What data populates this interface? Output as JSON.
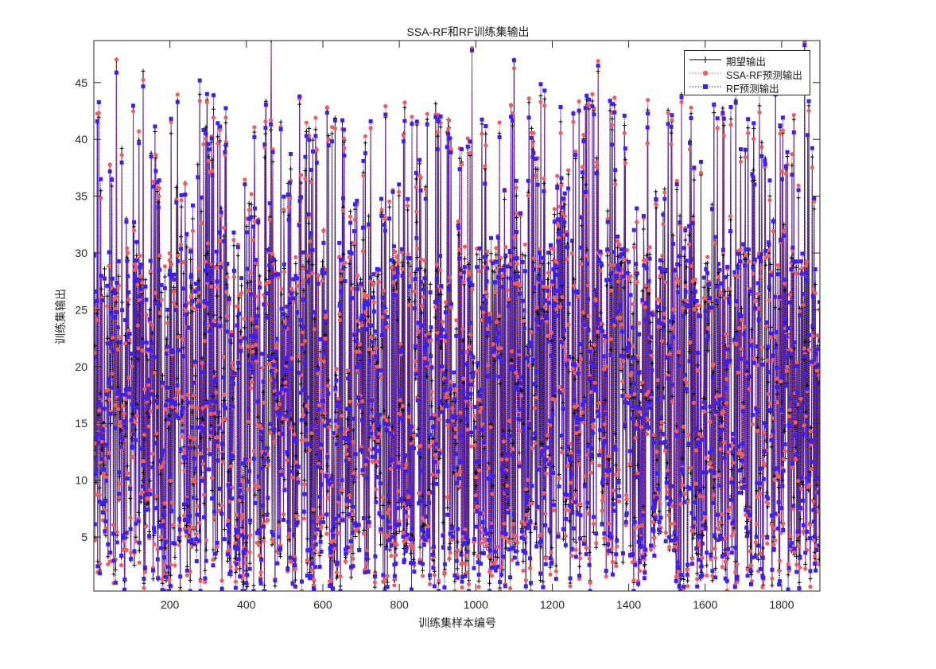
{
  "figure": {
    "title": "SSA-RF和RF训练集输出",
    "xlabel": "训练集样本编号",
    "ylabel": "训练集输出"
  },
  "legend": {
    "items": [
      {
        "label": "期望输出",
        "color": "#000000",
        "line": "solid",
        "marker": "plus"
      },
      {
        "label": "SSA-RF预测输出",
        "color": "#f05d5d",
        "line": "dotted",
        "marker": "circle"
      },
      {
        "label": "RF预测输出",
        "color": "#3d1ff0",
        "line": "dotted",
        "marker": "square"
      }
    ]
  },
  "chart_data": {
    "type": "line",
    "title": "SSA-RF和RF训练集输出",
    "xlabel": "训练集样本编号",
    "ylabel": "训练集输出",
    "xlim": [
      1,
      1900
    ],
    "ylim": [
      0.24,
      48.7
    ],
    "xticks": [
      200,
      400,
      600,
      800,
      1000,
      1200,
      1400,
      1600,
      1800
    ],
    "yticks": [
      5,
      10,
      15,
      20,
      25,
      30,
      35,
      40,
      45
    ],
    "grid": false,
    "legend_position": "northeast",
    "n_points": 1900,
    "series": [
      {
        "name": "期望输出",
        "color": "#000000",
        "style": "solid line with + markers"
      },
      {
        "name": "SSA-RF预测输出",
        "color": "#f05d5d",
        "style": "dotted line with circle markers"
      },
      {
        "name": "RF预测输出",
        "color": "#3d1ff0",
        "style": "dotted line with square markers"
      }
    ],
    "value_range_observed": {
      "min": 0.3,
      "max": 48.7,
      "typical_band": [
        2,
        42
      ]
    },
    "notable_peaks": [
      {
        "x": 60,
        "y": 47.0
      },
      {
        "x": 130,
        "y": 46.0
      },
      {
        "x": 465,
        "y": 48.7
      },
      {
        "x": 990,
        "y": 48.0
      },
      {
        "x": 1100,
        "y": 47.0
      },
      {
        "x": 1320,
        "y": 46.0
      },
      {
        "x": 1860,
        "y": 48.6
      }
    ]
  },
  "axes": {
    "xtick_labels": [
      "200",
      "400",
      "600",
      "800",
      "1000",
      "1200",
      "1400",
      "1600",
      "1800"
    ],
    "ytick_labels": [
      "5",
      "10",
      "15",
      "20",
      "25",
      "30",
      "35",
      "40",
      "45"
    ]
  }
}
